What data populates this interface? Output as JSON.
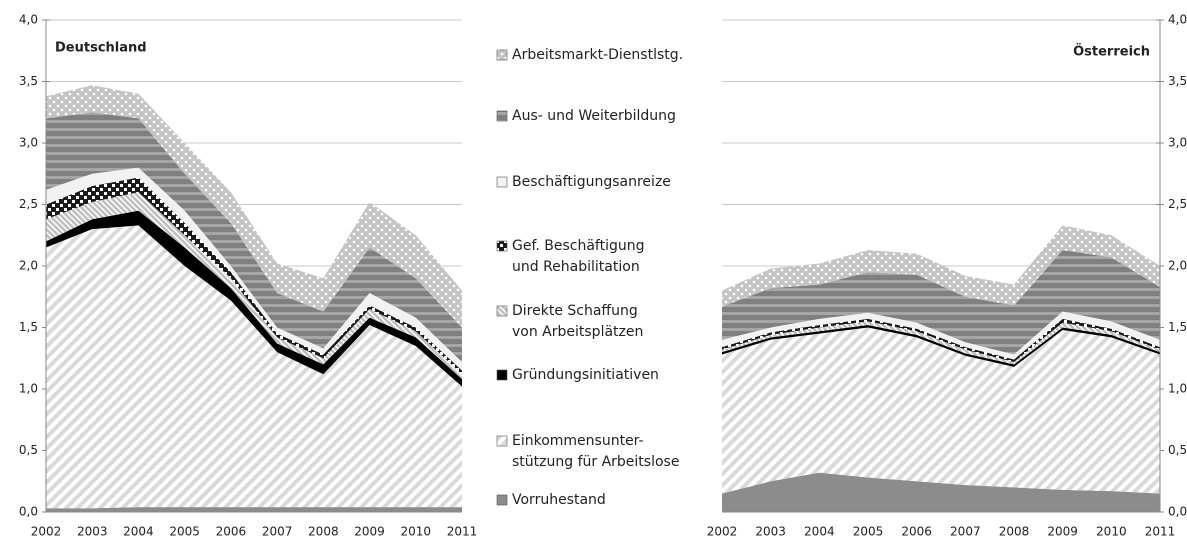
{
  "chart_data": [
    {
      "type": "stacked_area",
      "title": "Deutschland",
      "categories": [
        "2002",
        "2003",
        "2004",
        "2005",
        "2006",
        "2007",
        "2008",
        "2009",
        "2010",
        "2011"
      ],
      "ylim": [
        0,
        4
      ],
      "yticks": [
        {
          "value": 0,
          "label": "0,0"
        },
        {
          "value": 0.5,
          "label": "0,5"
        },
        {
          "value": 1,
          "label": "1,0"
        },
        {
          "value": 1.5,
          "label": "1,5"
        },
        {
          "value": 2,
          "label": "2,0"
        },
        {
          "value": 2.5,
          "label": "2,5"
        },
        {
          "value": 3,
          "label": "3,0"
        },
        {
          "value": 3.5,
          "label": "3,5"
        },
        {
          "value": 4,
          "label": "4,0"
        }
      ],
      "grid": true,
      "series": [
        {
          "name": "Vorruhestand",
          "color": "#8c8c8c",
          "values": [
            0.03,
            0.03,
            0.04,
            0.04,
            0.04,
            0.04,
            0.04,
            0.04,
            0.04,
            0.04
          ]
        },
        {
          "name": "Einkommensunter-\nstützung für Arbeitslose",
          "color": "#d9d9d9",
          "values": [
            2.12,
            2.27,
            2.29,
            1.96,
            1.68,
            1.26,
            1.08,
            1.48,
            1.31,
            0.98
          ]
        },
        {
          "name": "Gründungsinitiativen",
          "color": "#000000",
          "values": [
            0.05,
            0.08,
            0.12,
            0.15,
            0.1,
            0.07,
            0.08,
            0.06,
            0.07,
            0.06
          ]
        },
        {
          "name": "Direkte Schaffung\nvon Arbeitsplätzen",
          "color": "#bfbfbf",
          "values": [
            0.18,
            0.14,
            0.15,
            0.1,
            0.08,
            0.05,
            0.05,
            0.07,
            0.05,
            0.04
          ]
        },
        {
          "name": "Gef. Beschäftigung\nund Rehabilitation",
          "color": "#1a1a1a",
          "values": [
            0.12,
            0.13,
            0.12,
            0.1,
            0.05,
            0.03,
            0.03,
            0.03,
            0.03,
            0.03
          ]
        },
        {
          "name": "Beschäftigungsanreize",
          "color": "#f2f2f2",
          "values": [
            0.12,
            0.1,
            0.08,
            0.1,
            0.05,
            0.05,
            0.05,
            0.1,
            0.08,
            0.07
          ]
        },
        {
          "name": "Aus- und Weiterbildung",
          "color": "#808080",
          "values": [
            0.58,
            0.5,
            0.4,
            0.3,
            0.35,
            0.28,
            0.3,
            0.37,
            0.32,
            0.28
          ]
        },
        {
          "name": "Arbeitsmarkt-Dienstlstg.",
          "color": "#c4c4c4",
          "values": [
            0.18,
            0.22,
            0.2,
            0.25,
            0.25,
            0.24,
            0.27,
            0.37,
            0.35,
            0.3
          ]
        }
      ]
    },
    {
      "type": "stacked_area",
      "title": "Österreich",
      "categories": [
        "2002",
        "2003",
        "2004",
        "2005",
        "2006",
        "2007",
        "2008",
        "2009",
        "2010",
        "2011"
      ],
      "ylim": [
        0,
        4
      ],
      "yticks": [
        {
          "value": 0,
          "label": "0,0"
        },
        {
          "value": 0.5,
          "label": "0,5"
        },
        {
          "value": 1,
          "label": "1,0"
        },
        {
          "value": 1.5,
          "label": "1,5"
        },
        {
          "value": 2,
          "label": "2,0"
        },
        {
          "value": 2.5,
          "label": "2,5"
        },
        {
          "value": 3,
          "label": "3,0"
        },
        {
          "value": 3.5,
          "label": "3,5"
        },
        {
          "value": 4,
          "label": "4,0"
        }
      ],
      "grid": true,
      "series": [
        {
          "color": "#8c8c8c",
          "values": [
            0.15,
            0.25,
            0.32,
            0.28,
            0.25,
            0.22,
            0.2,
            0.18,
            0.17,
            0.15
          ]
        },
        {
          "color": "#d9d9d9",
          "values": [
            1.13,
            1.15,
            1.13,
            1.22,
            1.17,
            1.05,
            0.98,
            1.3,
            1.25,
            1.13
          ]
        },
        {
          "color": "#000000",
          "values": [
            0.02,
            0.02,
            0.02,
            0.02,
            0.02,
            0.02,
            0.02,
            0.02,
            0.02,
            0.02
          ]
        },
        {
          "color": "#bfbfbf",
          "values": [
            0.02,
            0.02,
            0.03,
            0.03,
            0.03,
            0.03,
            0.02,
            0.04,
            0.03,
            0.02
          ]
        },
        {
          "color": "#1a1a1a",
          "values": [
            0.02,
            0.02,
            0.02,
            0.02,
            0.02,
            0.02,
            0.02,
            0.03,
            0.02,
            0.02
          ]
        },
        {
          "color": "#f2f2f2",
          "values": [
            0.06,
            0.04,
            0.05,
            0.05,
            0.05,
            0.04,
            0.04,
            0.06,
            0.06,
            0.06
          ]
        },
        {
          "color": "#808080",
          "values": [
            0.27,
            0.32,
            0.28,
            0.33,
            0.39,
            0.37,
            0.4,
            0.5,
            0.52,
            0.43
          ]
        },
        {
          "color": "#c4c4c4",
          "values": [
            0.13,
            0.16,
            0.17,
            0.18,
            0.17,
            0.17,
            0.17,
            0.2,
            0.18,
            0.17
          ]
        }
      ]
    }
  ]
}
